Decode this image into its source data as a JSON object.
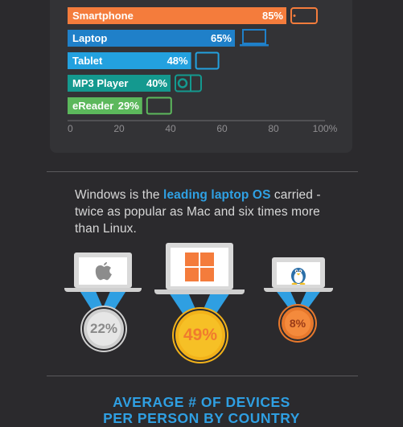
{
  "chart_data": {
    "type": "bar",
    "orientation": "horizontal",
    "categories": [
      "Smartphone",
      "Laptop",
      "Tablet",
      "MP3 Player",
      "eReader"
    ],
    "values": [
      85,
      65,
      48,
      40,
      29
    ],
    "value_labels": [
      "85%",
      "65%",
      "48%",
      "40%",
      "29%"
    ],
    "colors": [
      "#f47c3c",
      "#1f80c9",
      "#23a1df",
      "#14998f",
      "#5cb85c"
    ],
    "icons": [
      "smartphone-icon",
      "laptop-icon",
      "tablet-icon",
      "mp3-player-icon",
      "ereader-icon"
    ],
    "xlim": [
      0,
      100
    ],
    "xticks": [
      "0",
      "20",
      "40",
      "60",
      "80",
      "100%"
    ],
    "grid": false
  },
  "os_text": {
    "before": "Windows is the ",
    "highlight": "leading laptop OS",
    "after": " carried - twice as popular as Mac and six times more than Linux."
  },
  "os_share": [
    {
      "name": "Mac",
      "icon": "apple-logo-icon",
      "label": "22%",
      "value": 22,
      "ribbon_color": "#2f9fe2",
      "medal_bg": "#e6e6e6",
      "medal_border": "#cfcfcf",
      "label_color": "#8a8a8a"
    },
    {
      "name": "Windows",
      "icon": "windows-logo-icon",
      "label": "49%",
      "value": 49,
      "ribbon_color": "#2f9fe2",
      "medal_bg": "#f6c026",
      "medal_border": "#f2b21a",
      "label_color": "#f07b2e"
    },
    {
      "name": "Linux",
      "icon": "linux-tux-icon",
      "label": "8%",
      "value": 8,
      "ribbon_color": "#2f9fe2",
      "medal_bg": "#f48a3c",
      "medal_border": "#e7782c",
      "label_color": "#9a3b18"
    }
  ],
  "footer": {
    "line1": "AVERAGE # OF DEVICES",
    "line2": "PER PERSON BY COUNTRY"
  }
}
